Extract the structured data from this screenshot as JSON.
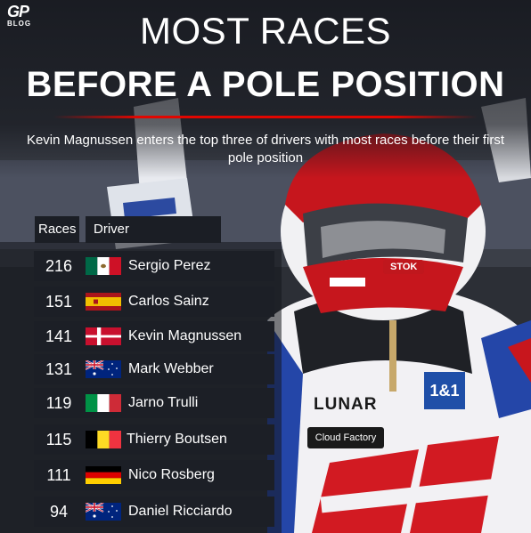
{
  "logo": {
    "gp": "GP",
    "blog": "BLOG"
  },
  "title": {
    "line1": "MOST RACES",
    "line2": "BEFORE A POLE POSITION"
  },
  "subtitle": "Kevin Magnussen enters the top three of drivers with most races before their first pole position",
  "table": {
    "headers": {
      "races": "Races",
      "driver": "Driver"
    },
    "rows": [
      {
        "races": "216",
        "driver": "Sergio Perez",
        "flag": "mexico"
      },
      {
        "races": "151",
        "driver": "Carlos Sainz",
        "flag": "spain"
      },
      {
        "races": "141",
        "driver": "Kevin Magnussen",
        "flag": "denmark"
      },
      {
        "races": "131",
        "driver": "Mark Webber",
        "flag": "australia"
      },
      {
        "races": "119",
        "driver": "Jarno Trulli",
        "flag": "italy"
      },
      {
        "races": "115",
        "driver": "Thierry Boutsen",
        "flag": "belgium"
      },
      {
        "races": "111",
        "driver": "Nico Rosberg",
        "flag": "germany"
      },
      {
        "races": "94",
        "driver": "Daniel Ricciardo",
        "flag": "australia"
      }
    ]
  },
  "photo_text": {
    "lunar": "LUNAR",
    "cloud": "Cloud Factory",
    "stok": "STOK",
    "sponsor": "1&1"
  },
  "colors": {
    "accent": "#e10600",
    "row_bg": "#1c1f26",
    "text": "#ffffff"
  }
}
